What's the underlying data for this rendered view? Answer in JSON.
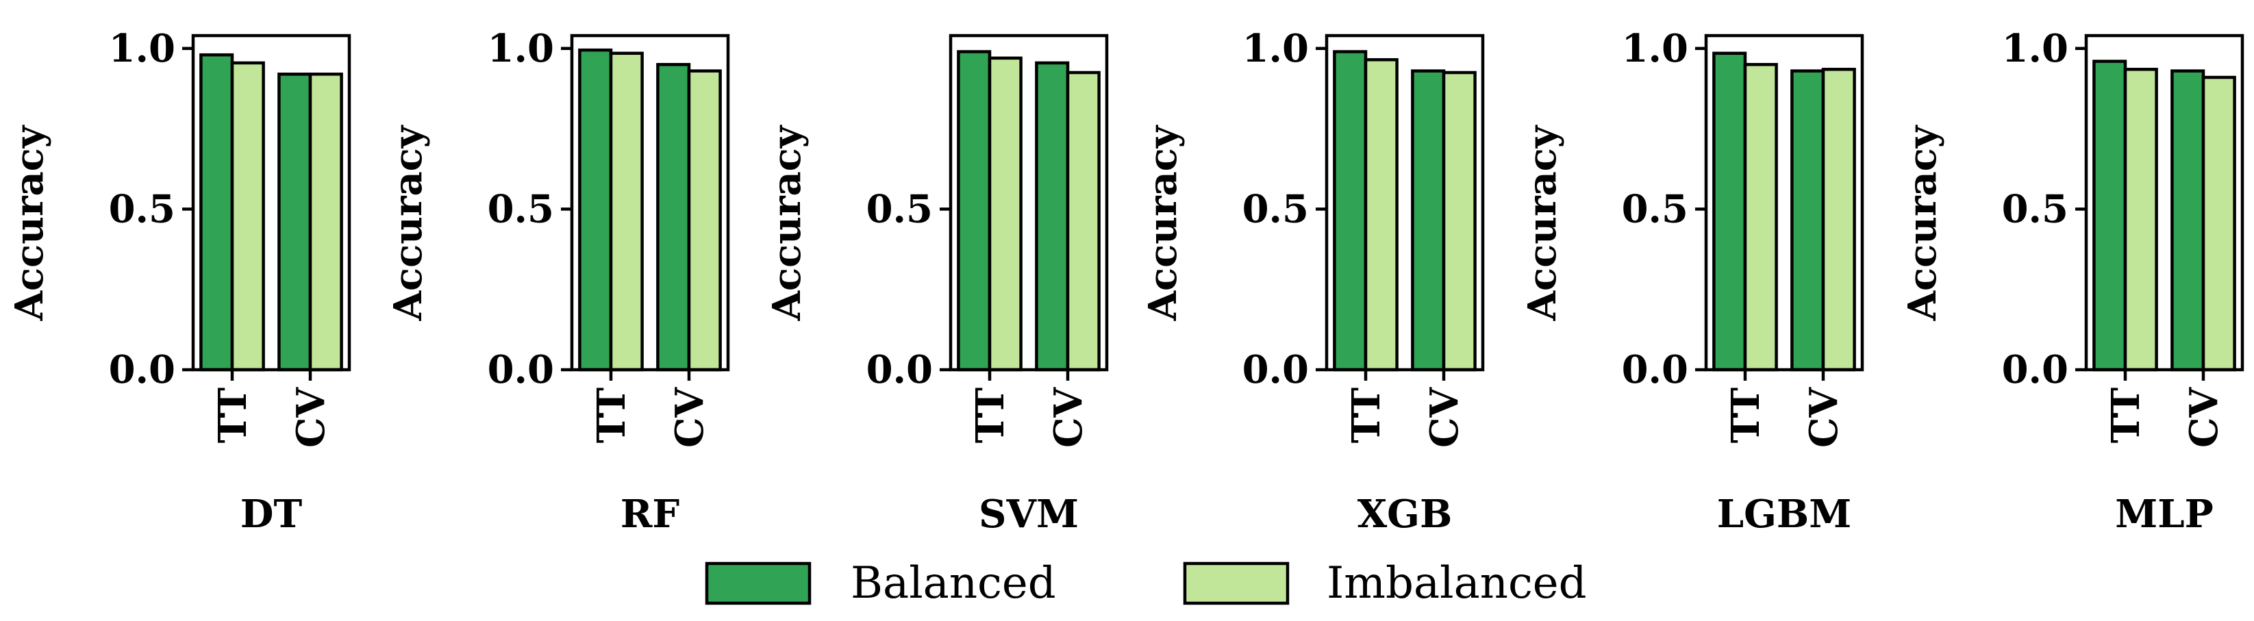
{
  "chart_data": [
    {
      "type": "bar",
      "title": "DT",
      "ylabel": "Accuracy",
      "categories": [
        "TT",
        "CV"
      ],
      "yticks": [
        "0.0",
        "0.5",
        "1.0"
      ],
      "yticks_values": [
        0,
        0.5,
        1.0
      ],
      "ylim": [
        0,
        1.04
      ],
      "series": [
        {
          "name": "Balanced",
          "values": [
            0.98,
            0.92
          ]
        },
        {
          "name": "Imbalanced",
          "values": [
            0.955,
            0.92
          ]
        }
      ]
    },
    {
      "type": "bar",
      "title": "RF",
      "ylabel": "Accuracy",
      "categories": [
        "TT",
        "CV"
      ],
      "yticks": [
        "0.0",
        "0.5",
        "1.0"
      ],
      "yticks_values": [
        0,
        0.5,
        1.0
      ],
      "ylim": [
        0,
        1.04
      ],
      "series": [
        {
          "name": "Balanced",
          "values": [
            0.995,
            0.95
          ]
        },
        {
          "name": "Imbalanced",
          "values": [
            0.985,
            0.93
          ]
        }
      ]
    },
    {
      "type": "bar",
      "title": "SVM",
      "ylabel": "Accuracy",
      "categories": [
        "TT",
        "CV"
      ],
      "yticks": [
        "0.0",
        "0.5"
      ],
      "yticks_values": [
        0,
        0.5
      ],
      "ylim": [
        0,
        1.04
      ],
      "series": [
        {
          "name": "Balanced",
          "values": [
            0.99,
            0.955
          ]
        },
        {
          "name": "Imbalanced",
          "values": [
            0.97,
            0.925
          ]
        }
      ]
    },
    {
      "type": "bar",
      "title": "XGB",
      "ylabel": "Accuracy",
      "categories": [
        "TT",
        "CV"
      ],
      "yticks": [
        "0.0",
        "0.5",
        "1.0"
      ],
      "yticks_values": [
        0,
        0.5,
        1.0
      ],
      "ylim": [
        0,
        1.04
      ],
      "series": [
        {
          "name": "Balanced",
          "values": [
            0.99,
            0.93
          ]
        },
        {
          "name": "Imbalanced",
          "values": [
            0.965,
            0.925
          ]
        }
      ]
    },
    {
      "type": "bar",
      "title": "LGBM",
      "ylabel": "Accuracy",
      "categories": [
        "TT",
        "CV"
      ],
      "yticks": [
        "0.0",
        "0.5",
        "1.0"
      ],
      "yticks_values": [
        0,
        0.5,
        1.0
      ],
      "ylim": [
        0,
        1.04
      ],
      "series": [
        {
          "name": "Balanced",
          "values": [
            0.985,
            0.93
          ]
        },
        {
          "name": "Imbalanced",
          "values": [
            0.95,
            0.935
          ]
        }
      ]
    },
    {
      "type": "bar",
      "title": "MLP",
      "ylabel": "Accuracy",
      "categories": [
        "TT",
        "CV"
      ],
      "yticks": [
        "0.0",
        "0.5",
        "1.0"
      ],
      "yticks_values": [
        0,
        0.5,
        1.0
      ],
      "ylim": [
        0,
        1.04
      ],
      "series": [
        {
          "name": "Balanced",
          "values": [
            0.96,
            0.93
          ]
        },
        {
          "name": "Imbalanced",
          "values": [
            0.935,
            0.91
          ]
        }
      ]
    }
  ],
  "legend": {
    "position": "bottom-center",
    "items": [
      {
        "label": "Balanced",
        "color": "#31a354"
      },
      {
        "label": "Imbalanced",
        "color": "#c2e699"
      }
    ]
  }
}
